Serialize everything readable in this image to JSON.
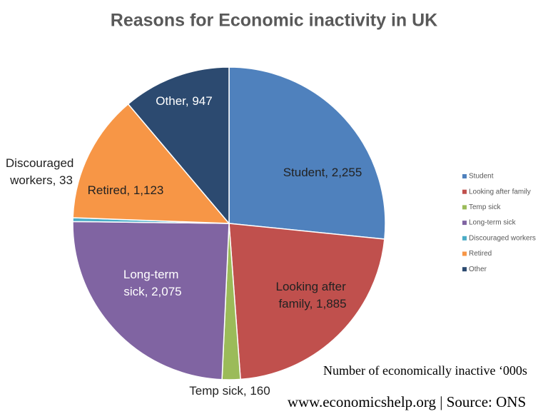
{
  "chart_data": {
    "type": "pie",
    "title": "Reasons for Economic inactivity in UK",
    "categories": [
      "Student",
      "Looking after family",
      "Temp sick",
      "Long-term sick",
      "Discouraged workers",
      "Retired",
      "Other"
    ],
    "values": [
      2255,
      1885,
      160,
      2075,
      33,
      1123,
      947
    ],
    "value_labels": [
      "Student, 2,255",
      "Looking after family, 1,885",
      "Temp sick, 160",
      "Long-term sick, 2,075",
      "Discouraged workers, 33",
      "Retired, 1,123",
      "Other, 947"
    ],
    "colors": [
      "#4f81bd",
      "#c0504d",
      "#9bbb59",
      "#8064a2",
      "#4bacc6",
      "#f79646",
      "#2c4a70"
    ],
    "legend": "right",
    "note": "Number of economically inactive ‘000s",
    "source": "www.economicshelp.org | Source: ONS"
  }
}
